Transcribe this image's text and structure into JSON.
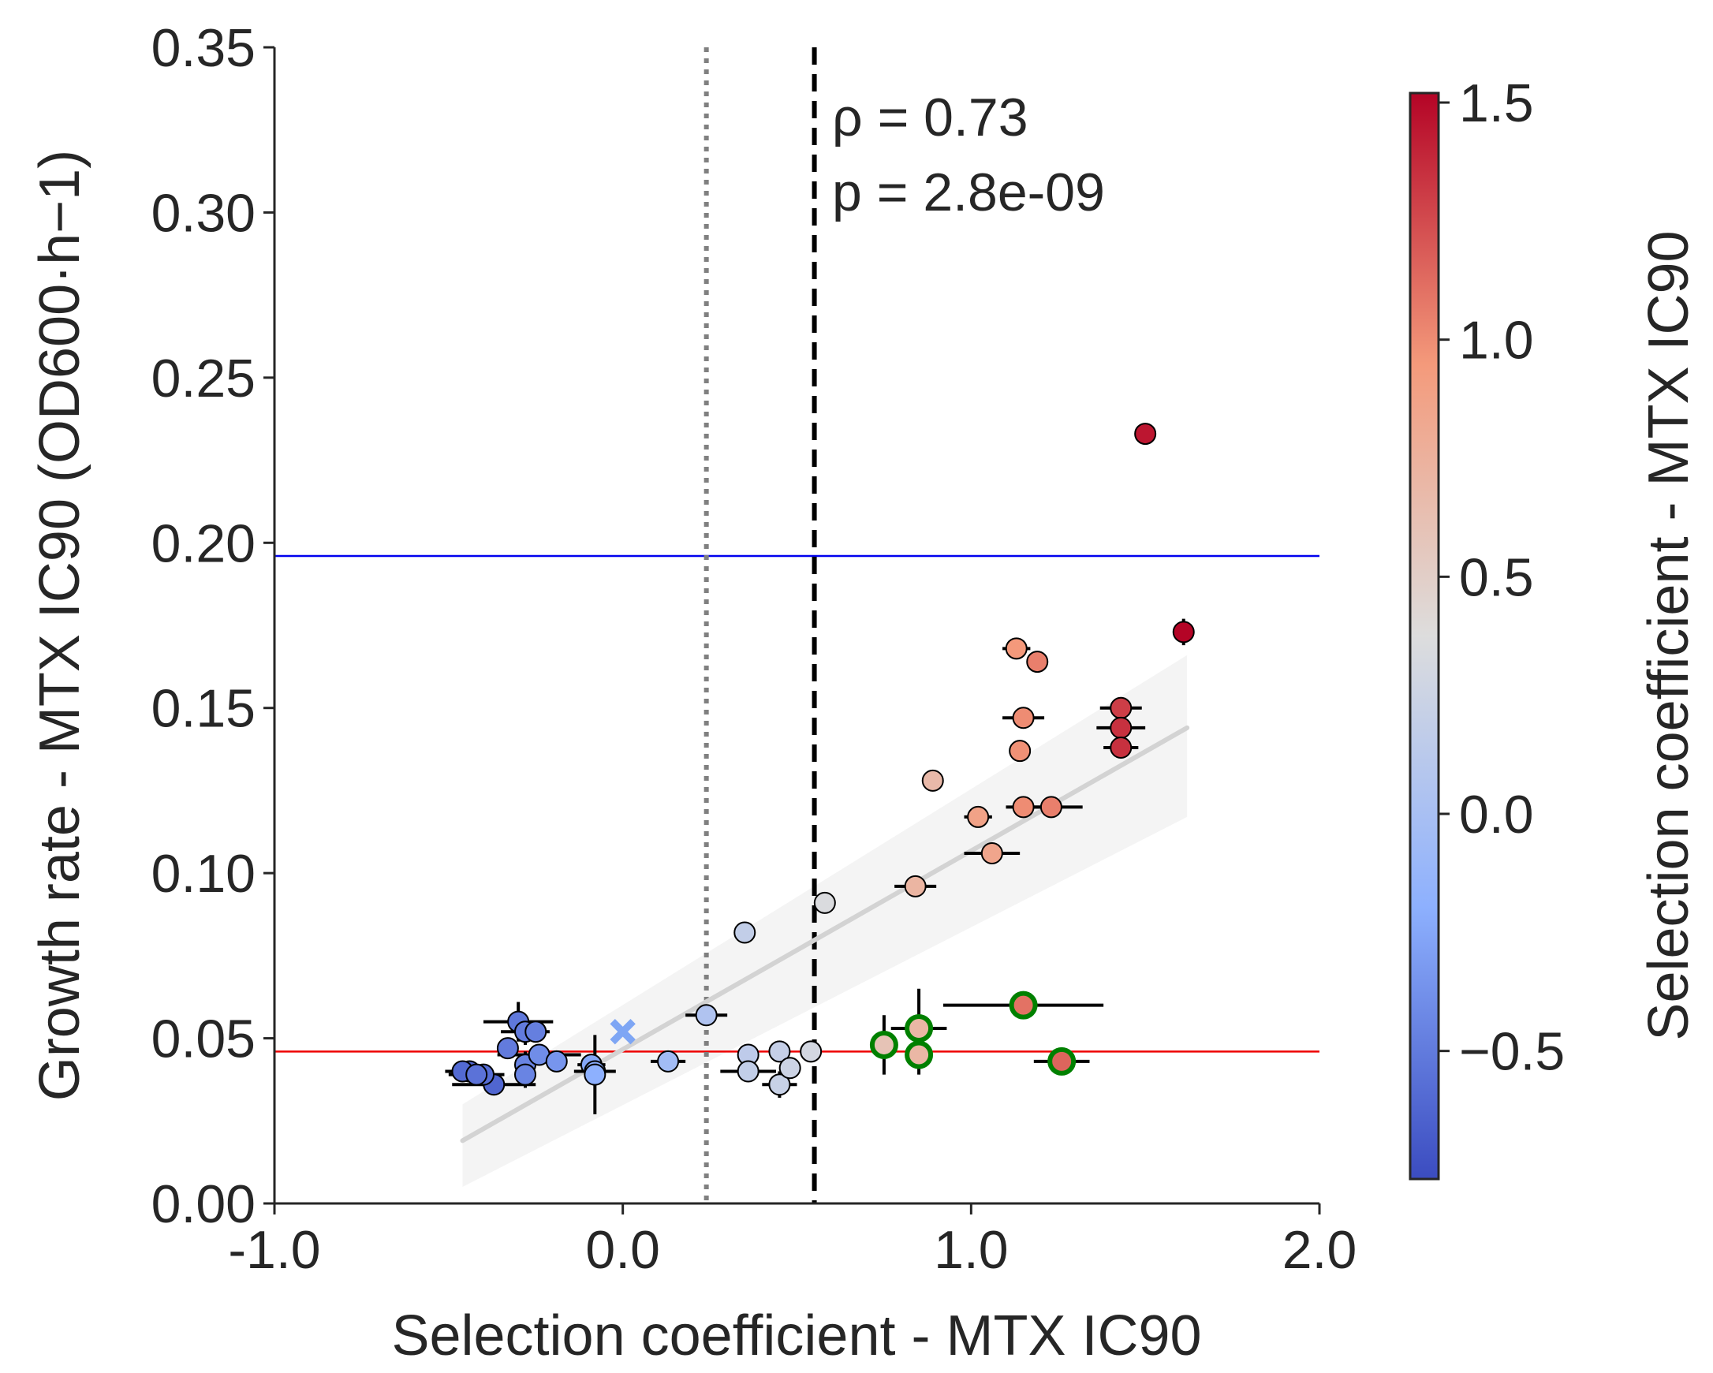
{
  "chart_data": {
    "type": "scatter",
    "xlabel": "Selection coefficient - MTX IC90",
    "ylabel": "Growth rate - MTX IC90 (OD600·h−1)",
    "xlim": [
      -1.0,
      2.0
    ],
    "ylim": [
      0.0,
      0.35
    ],
    "x_ticks": [
      "-1.0",
      "0.0",
      "1.0",
      "2.0"
    ],
    "y_ticks": [
      "0.00",
      "0.05",
      "0.10",
      "0.15",
      "0.20",
      "0.25",
      "0.30",
      "0.35"
    ],
    "annotation": {
      "rho_label": "ρ = 0.73",
      "p_label": "p = 2.8e-09"
    },
    "reference_lines": {
      "dotted_vertical_x": 0.24,
      "dashed_vertical_x": 0.55,
      "blue_horizontal_y": 0.196,
      "red_horizontal_y": 0.046
    },
    "regression": {
      "x": [
        -0.46,
        1.62
      ],
      "y": [
        0.019,
        0.144
      ],
      "ci_lower": [
        0.005,
        0.117
      ],
      "ci_upper": [
        0.03,
        0.166
      ]
    },
    "colorbar": {
      "label": "Selection coefficient - MTX IC90",
      "range": [
        -0.77,
        1.52
      ],
      "ticks": [
        "−0.5",
        "0.0",
        "0.5",
        "1.0",
        "1.5"
      ],
      "tick_values": [
        -0.5,
        0.0,
        0.5,
        1.0,
        1.5
      ],
      "colormap": "coolwarm"
    },
    "reference_marker": {
      "x": 0.0,
      "y": 0.052,
      "marker": "x"
    },
    "points": [
      {
        "x": -0.46,
        "y": 0.04,
        "xerr": 0.05,
        "yerr": 0.0,
        "c": -0.6,
        "highlight": false
      },
      {
        "x": -0.44,
        "y": 0.04,
        "xerr": 0.04,
        "yerr": 0.0,
        "c": -0.62,
        "highlight": false
      },
      {
        "x": -0.42,
        "y": 0.039,
        "xerr": 0.08,
        "yerr": 0.0,
        "c": -0.55,
        "highlight": false
      },
      {
        "x": -0.4,
        "y": 0.039,
        "xerr": 0.0,
        "yerr": 0.0,
        "c": -0.58,
        "highlight": false
      },
      {
        "x": -0.37,
        "y": 0.036,
        "xerr": 0.12,
        "yerr": 0.0,
        "c": -0.62,
        "highlight": false
      },
      {
        "x": -0.33,
        "y": 0.047,
        "xerr": 0.0,
        "yerr": 0.0,
        "c": -0.5,
        "highlight": false
      },
      {
        "x": -0.3,
        "y": 0.055,
        "xerr": 0.1,
        "yerr": 0.006,
        "c": -0.52,
        "highlight": false
      },
      {
        "x": -0.28,
        "y": 0.052,
        "xerr": 0.07,
        "yerr": 0.004,
        "c": -0.5,
        "highlight": false
      },
      {
        "x": -0.28,
        "y": 0.042,
        "xerr": 0.0,
        "yerr": 0.004,
        "c": -0.45,
        "highlight": false
      },
      {
        "x": -0.28,
        "y": 0.039,
        "xerr": 0.0,
        "yerr": 0.004,
        "c": -0.45,
        "highlight": false
      },
      {
        "x": -0.25,
        "y": 0.052,
        "xerr": 0.0,
        "yerr": 0.0,
        "c": -0.48,
        "highlight": false
      },
      {
        "x": -0.24,
        "y": 0.045,
        "xerr": 0.12,
        "yerr": 0.0,
        "c": -0.4,
        "highlight": false
      },
      {
        "x": -0.19,
        "y": 0.043,
        "xerr": 0.0,
        "yerr": 0.0,
        "c": -0.35,
        "highlight": false
      },
      {
        "x": -0.09,
        "y": 0.042,
        "xerr": 0.04,
        "yerr": 0.0,
        "c": -0.25,
        "highlight": false
      },
      {
        "x": -0.08,
        "y": 0.04,
        "xerr": 0.06,
        "yerr": 0.0,
        "c": -0.22,
        "highlight": false
      },
      {
        "x": -0.08,
        "y": 0.039,
        "xerr": 0.0,
        "yerr": 0.012,
        "c": -0.2,
        "highlight": false
      },
      {
        "x": 0.13,
        "y": 0.043,
        "xerr": 0.05,
        "yerr": 0.003,
        "c": -0.05,
        "highlight": false
      },
      {
        "x": 0.24,
        "y": 0.057,
        "xerr": 0.06,
        "yerr": 0.0,
        "c": 0.05,
        "highlight": false
      },
      {
        "x": 0.35,
        "y": 0.082,
        "xerr": 0.0,
        "yerr": 0.0,
        "c": 0.18,
        "highlight": false
      },
      {
        "x": 0.36,
        "y": 0.045,
        "xerr": 0.0,
        "yerr": 0.0,
        "c": 0.15,
        "highlight": false
      },
      {
        "x": 0.36,
        "y": 0.04,
        "xerr": 0.08,
        "yerr": 0.0,
        "c": 0.18,
        "highlight": false
      },
      {
        "x": 0.45,
        "y": 0.046,
        "xerr": 0.0,
        "yerr": 0.0,
        "c": 0.2,
        "highlight": false
      },
      {
        "x": 0.45,
        "y": 0.036,
        "xerr": 0.05,
        "yerr": 0.004,
        "c": 0.22,
        "highlight": false
      },
      {
        "x": 0.48,
        "y": 0.041,
        "xerr": 0.0,
        "yerr": 0.0,
        "c": 0.25,
        "highlight": false
      },
      {
        "x": 0.54,
        "y": 0.046,
        "xerr": 0.0,
        "yerr": 0.0,
        "c": 0.3,
        "highlight": false
      },
      {
        "x": 0.58,
        "y": 0.091,
        "xerr": 0.0,
        "yerr": 0.0,
        "c": 0.35,
        "highlight": false
      },
      {
        "x": 0.75,
        "y": 0.048,
        "xerr": 0.0,
        "yerr": 0.009,
        "c": 0.6,
        "highlight": true
      },
      {
        "x": 0.85,
        "y": 0.053,
        "xerr": 0.08,
        "yerr": 0.012,
        "c": 0.7,
        "highlight": true
      },
      {
        "x": 0.85,
        "y": 0.045,
        "xerr": 0.0,
        "yerr": 0.006,
        "c": 0.7,
        "highlight": true
      },
      {
        "x": 0.84,
        "y": 0.096,
        "xerr": 0.06,
        "yerr": 0.0,
        "c": 0.72,
        "highlight": false
      },
      {
        "x": 0.89,
        "y": 0.128,
        "xerr": 0.0,
        "yerr": 0.0,
        "c": 0.68,
        "highlight": false
      },
      {
        "x": 1.02,
        "y": 0.117,
        "xerr": 0.04,
        "yerr": 0.0,
        "c": 0.88,
        "highlight": false
      },
      {
        "x": 1.06,
        "y": 0.106,
        "xerr": 0.08,
        "yerr": 0.0,
        "c": 0.85,
        "highlight": false
      },
      {
        "x": 1.13,
        "y": 0.168,
        "xerr": 0.04,
        "yerr": 0.0,
        "c": 0.95,
        "highlight": false
      },
      {
        "x": 1.14,
        "y": 0.137,
        "xerr": 0.03,
        "yerr": 0.0,
        "c": 0.98,
        "highlight": false
      },
      {
        "x": 1.15,
        "y": 0.147,
        "xerr": 0.06,
        "yerr": 0.0,
        "c": 1.0,
        "highlight": false
      },
      {
        "x": 1.15,
        "y": 0.12,
        "xerr": 0.05,
        "yerr": 0.0,
        "c": 1.0,
        "highlight": false
      },
      {
        "x": 1.15,
        "y": 0.06,
        "xerr": 0.23,
        "yerr": 0.0,
        "c": 1.1,
        "highlight": true
      },
      {
        "x": 1.19,
        "y": 0.164,
        "xerr": 0.0,
        "yerr": 0.0,
        "c": 1.05,
        "highlight": false
      },
      {
        "x": 1.23,
        "y": 0.12,
        "xerr": 0.09,
        "yerr": 0.0,
        "c": 1.05,
        "highlight": false
      },
      {
        "x": 1.26,
        "y": 0.043,
        "xerr": 0.08,
        "yerr": 0.0,
        "c": 1.15,
        "highlight": true
      },
      {
        "x": 1.43,
        "y": 0.15,
        "xerr": 0.06,
        "yerr": 0.0,
        "c": 1.3,
        "highlight": false
      },
      {
        "x": 1.43,
        "y": 0.144,
        "xerr": 0.07,
        "yerr": 0.0,
        "c": 1.35,
        "highlight": false
      },
      {
        "x": 1.43,
        "y": 0.138,
        "xerr": 0.05,
        "yerr": 0.0,
        "c": 1.35,
        "highlight": false
      },
      {
        "x": 1.5,
        "y": 0.233,
        "xerr": 0.0,
        "yerr": 0.0,
        "c": 1.45,
        "highlight": false
      },
      {
        "x": 1.61,
        "y": 0.173,
        "xerr": 0.0,
        "yerr": 0.004,
        "c": 1.52,
        "highlight": false
      }
    ],
    "grid": false,
    "legend": "none"
  }
}
